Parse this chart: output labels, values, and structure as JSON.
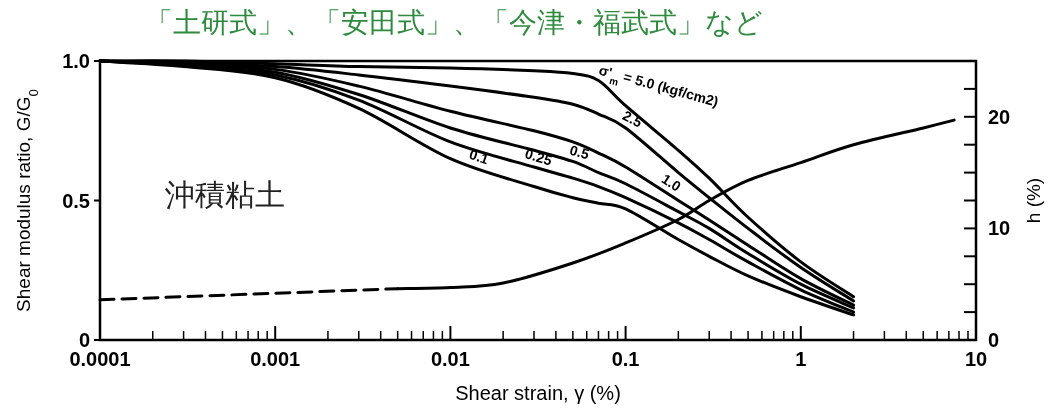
{
  "chart_data": {
    "type": "line",
    "title": "「土研式」、「安田式」、「今津・福武式」など",
    "xlabel": "Shear strain, γ (%)",
    "ylabel": "Shear modulus ratio, G/G$_{0}$",
    "y2label": "h (%)",
    "annotations": [
      "沖積粘土"
    ],
    "log": "x",
    "grid": false,
    "xlim": [
      0.0001,
      10
    ],
    "xticks": [
      0.0001,
      0.001,
      0.01,
      0.1,
      1,
      10
    ],
    "ylim": [
      0,
      1
    ],
    "yticks": [
      0,
      0.5,
      {
        "value": 1,
        "label": "1.0"
      }
    ],
    "y2lim": [
      0,
      25
    ],
    "y2ticks": [
      0,
      {
        "value": 2.5,
        "label": null
      },
      {
        "value": 5,
        "label": null
      },
      {
        "value": 7.5,
        "label": null
      },
      10,
      {
        "value": 12.5,
        "label": null
      },
      {
        "value": 15,
        "label": null
      },
      {
        "value": 17.5,
        "label": null
      },
      20,
      {
        "value": 22.5,
        "label": null
      }
    ],
    "series": [
      {
        "name": "σ'$_{m}$ = 5.0 (kgf/cm2)",
        "color": "#000000",
        "x": [
          0.0001,
          0.0003,
          0.001,
          0.003,
          0.01,
          0.03,
          0.05,
          0.07,
          0.1,
          0.2,
          0.3,
          0.5,
          1,
          2
        ],
        "values": [
          1.0,
          1.0,
          0.99,
          0.98,
          0.975,
          0.965,
          0.955,
          0.93,
          0.84,
          0.68,
          0.58,
          0.44,
          0.28,
          0.155
        ]
      },
      {
        "name": "2.5",
        "color": "#000000",
        "x": [
          0.0001,
          0.0003,
          0.001,
          0.003,
          0.01,
          0.03,
          0.05,
          0.07,
          0.1,
          0.2,
          0.3,
          0.5,
          1,
          2
        ],
        "values": [
          1.0,
          0.995,
          0.98,
          0.95,
          0.91,
          0.87,
          0.845,
          0.81,
          0.76,
          0.6,
          0.51,
          0.4,
          0.26,
          0.14
        ]
      },
      {
        "name": "1.0",
        "color": "#000000",
        "x": [
          0.0001,
          0.0003,
          0.001,
          0.003,
          0.01,
          0.03,
          0.05,
          0.07,
          0.1,
          0.2,
          0.3,
          0.5,
          1,
          2
        ],
        "values": [
          1.0,
          0.99,
          0.97,
          0.91,
          0.82,
          0.75,
          0.71,
          0.67,
          0.62,
          0.5,
          0.43,
          0.34,
          0.22,
          0.125
        ]
      },
      {
        "name": "0.5",
        "color": "#000000",
        "x": [
          0.0001,
          0.0003,
          0.001,
          0.003,
          0.01,
          0.03,
          0.05,
          0.07,
          0.1,
          0.2,
          0.3,
          0.5,
          1,
          2
        ],
        "values": [
          1.0,
          0.99,
          0.96,
          0.88,
          0.76,
          0.68,
          0.64,
          0.6,
          0.56,
          0.46,
          0.4,
          0.31,
          0.2,
          0.115
        ]
      },
      {
        "name": "0.25",
        "color": "#000000",
        "x": [
          0.0001,
          0.0003,
          0.001,
          0.003,
          0.01,
          0.03,
          0.05,
          0.07,
          0.1,
          0.2,
          0.3,
          0.5,
          1,
          2
        ],
        "values": [
          1.0,
          0.985,
          0.95,
          0.86,
          0.71,
          0.62,
          0.58,
          0.55,
          0.51,
          0.42,
          0.36,
          0.28,
          0.18,
          0.1
        ]
      },
      {
        "name": "0.1",
        "color": "#000000",
        "x": [
          0.0001,
          0.0003,
          0.001,
          0.003,
          0.01,
          0.03,
          0.05,
          0.07,
          0.1,
          0.2,
          0.3,
          0.5,
          1,
          2
        ],
        "values": [
          1.0,
          0.98,
          0.94,
          0.83,
          0.65,
          0.55,
          0.51,
          0.49,
          0.47,
          0.36,
          0.3,
          0.23,
          0.155,
          0.09
        ]
      },
      {
        "color": "#000000",
        "axis": "y2",
        "line_style": "dashed",
        "x": [
          0.0001,
          0.005
        ],
        "values": [
          3.6,
          4.6
        ]
      },
      {
        "color": "#000000",
        "axis": "y2",
        "x": [
          0.005,
          0.01,
          0.02,
          0.05,
          0.1,
          0.2,
          0.3,
          0.5,
          1,
          2,
          5,
          7.5
        ],
        "values": [
          4.6,
          4.7,
          5.1,
          6.9,
          8.7,
          10.8,
          12.5,
          14.3,
          15.9,
          17.5,
          19.0,
          19.7
        ]
      }
    ]
  }
}
